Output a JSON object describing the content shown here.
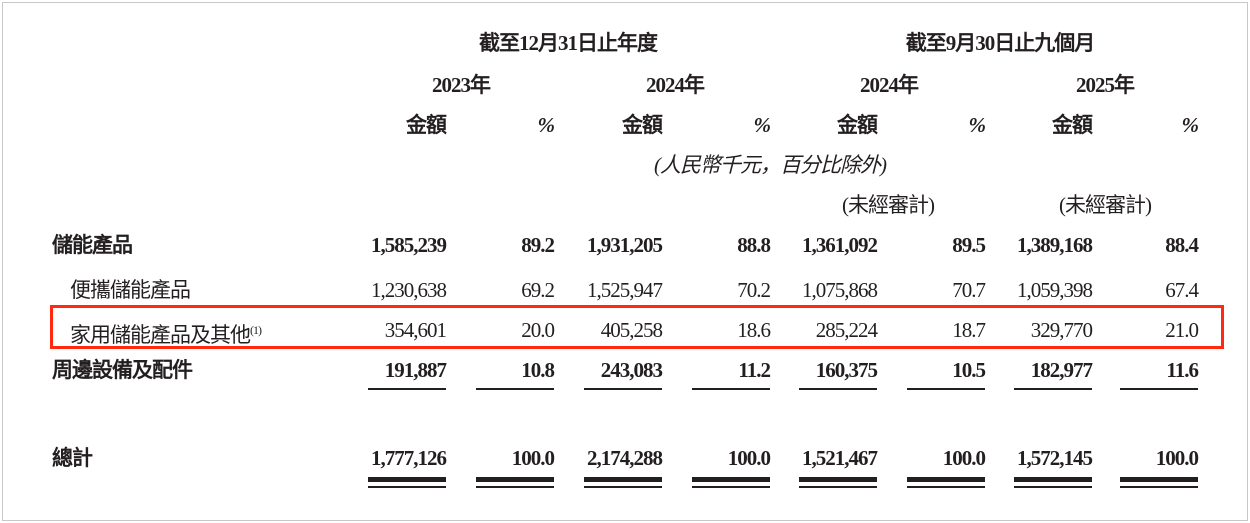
{
  "header": {
    "group1": "截至12月31日止年度",
    "group2": "截至9月30日止九個月",
    "years": [
      "2023年",
      "2024年",
      "2024年",
      "2025年"
    ],
    "amount_label": "金額",
    "pct_label": "%",
    "unit_note": "(人民幣千元，百分比除外)",
    "unaudited": "(未經審計)"
  },
  "rows": [
    {
      "label": "儲能產品",
      "values": [
        "1,585,239",
        "89.2",
        "1,931,205",
        "88.8",
        "1,361,092",
        "89.5",
        "1,389,168",
        "88.4"
      ]
    },
    {
      "label": "便攜儲能產品",
      "values": [
        "1,230,638",
        "69.2",
        "1,525,947",
        "70.2",
        "1,075,868",
        "70.7",
        "1,059,398",
        "67.4"
      ]
    },
    {
      "label": "家用儲能產品及其他",
      "footnote": "(1)",
      "values": [
        "354,601",
        "20.0",
        "405,258",
        "18.6",
        "285,224",
        "18.7",
        "329,770",
        "21.0"
      ]
    },
    {
      "label": "周邊設備及配件",
      "values": [
        "191,887",
        "10.8",
        "243,083",
        "11.2",
        "160,375",
        "10.5",
        "182,977",
        "11.6"
      ]
    },
    {
      "label": "總計",
      "values": [
        "1,777,126",
        "100.0",
        "2,174,288",
        "100.0",
        "1,521,467",
        "100.0",
        "1,572,145",
        "100.0"
      ]
    }
  ],
  "highlight_color": "#ff2a10"
}
